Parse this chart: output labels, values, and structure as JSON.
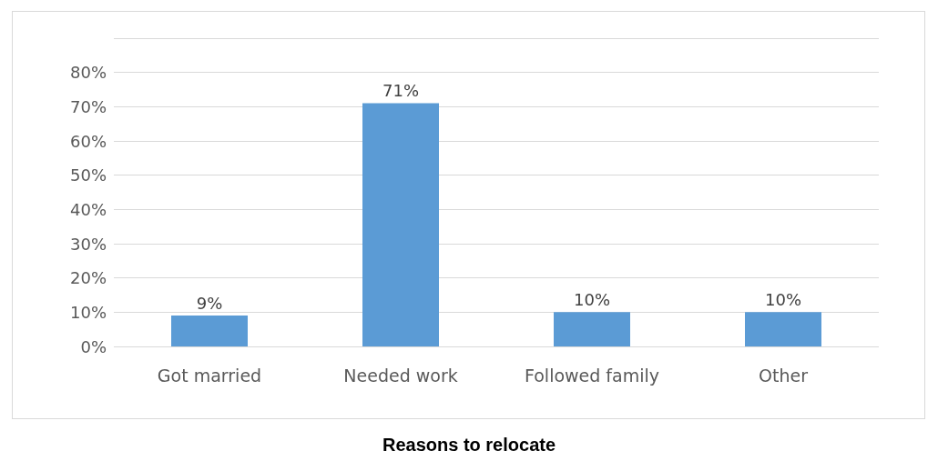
{
  "chart_data": {
    "type": "bar",
    "title": "Reasons to relocate",
    "categories": [
      "Got married",
      "Needed work",
      "Followed family",
      "Other"
    ],
    "values": [
      9,
      71,
      10,
      10
    ],
    "value_labels": [
      "9%",
      "71%",
      "10%",
      "10%"
    ],
    "color": "#5b9bd5",
    "ylim": [
      0,
      90
    ],
    "yticks": [
      {
        "value": 0,
        "label": "0%"
      },
      {
        "value": 10,
        "label": "10%"
      },
      {
        "value": 20,
        "label": "20%"
      },
      {
        "value": 30,
        "label": "30%"
      },
      {
        "value": 40,
        "label": "40%"
      },
      {
        "value": 50,
        "label": "50%"
      },
      {
        "value": 60,
        "label": "60%"
      },
      {
        "value": 70,
        "label": "70%"
      },
      {
        "value": 80,
        "label": "80%"
      },
      {
        "value": 90,
        "label": null
      }
    ],
    "grid": true
  }
}
